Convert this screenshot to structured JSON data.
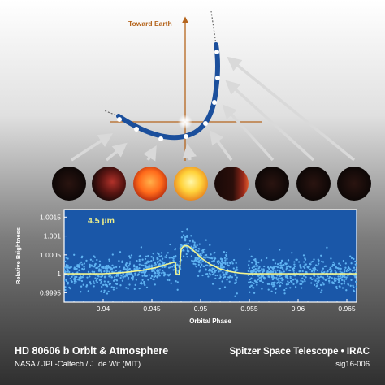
{
  "diagram": {
    "toward_earth_label": "Toward Earth",
    "colors": {
      "orbit": "#1b4f9c",
      "axis": "#b5651d",
      "arrow": "#d9d9d9",
      "planet_dark": "#120a09",
      "planet_hot": "#ff8a1f"
    },
    "phase_planets": [
      "dark",
      "warm",
      "hot",
      "brightest",
      "warm-crescent",
      "dark",
      "dark",
      "dark"
    ]
  },
  "chart_data": {
    "type": "scatter",
    "title": "",
    "annotation": "4.5 µm",
    "xlabel": "Orbital Phase",
    "ylabel": "Relative Brightness",
    "xlim": [
      0.936,
      0.966
    ],
    "ylim": [
      0.99925,
      1.0017
    ],
    "xticks": [
      0.94,
      0.945,
      0.95,
      0.955,
      0.96,
      0.965
    ],
    "xtick_labels": [
      "0.94",
      "0.945",
      "0.95",
      "0.955",
      "0.96",
      "0.965"
    ],
    "yticks": [
      0.9995,
      1,
      1.0005,
      1.001,
      1.0015
    ],
    "ytick_labels": [
      "0.9995",
      "1",
      "1.0005",
      "1.001",
      "1.0015"
    ],
    "grid": false,
    "colors": {
      "plot_bg": "#1a57a8",
      "points": "#5fb3f2",
      "model": "#f3f58e",
      "annotation": "#f0f08a"
    },
    "model": {
      "x": [
        0.936,
        0.94,
        0.942,
        0.944,
        0.9455,
        0.9465,
        0.9472,
        0.9474,
        0.9475,
        0.9478,
        0.9479,
        0.948,
        0.9483,
        0.9487,
        0.949,
        0.9495,
        0.95,
        0.951,
        0.952,
        0.953,
        0.954,
        0.955,
        0.956,
        0.966
      ],
      "y": [
        1.0,
        1.0,
        1.00003,
        1.00009,
        1.00017,
        1.00025,
        1.0003,
        1.0003,
        0.99998,
        0.99998,
        1.0003,
        1.00066,
        1.00074,
        1.00074,
        1.00068,
        1.00056,
        1.00043,
        1.00025,
        1.00013,
        1.00006,
        1.00002,
        1.0,
        1.0,
        1.0
      ]
    }
  },
  "footer": {
    "title": "HD 80606 b Orbit & Atmosphere",
    "credit": "NASA / JPL-Caltech / J. de Wit (MIT)",
    "instrument": "Spitzer Space Telescope • IRAC",
    "id": "sig16-006"
  }
}
